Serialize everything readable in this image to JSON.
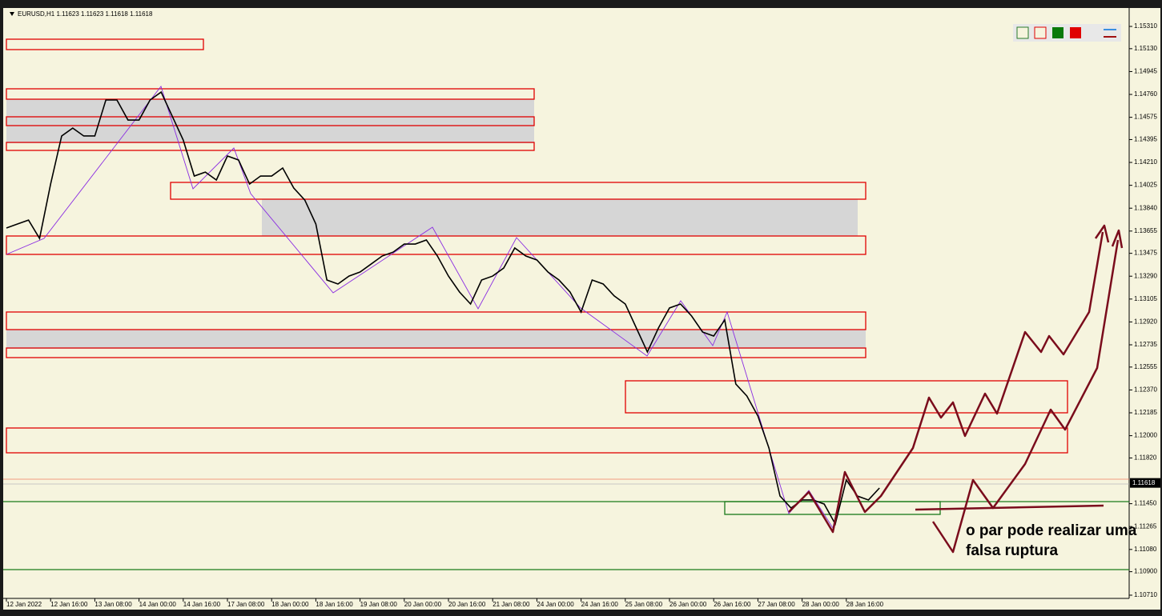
{
  "chart_data": {
    "type": "line",
    "title": "EURUSD,H1  1.11623 1.11623 1.11618 1.11618",
    "annotation": "o par pode realizar uma falsa ruptura",
    "current_price": 1.11618,
    "color": "#000000",
    "categories": [
      "12 Jan 2022",
      null,
      null,
      null,
      "12 Jan 16:00",
      null,
      null,
      null,
      "13 Jan 08:00",
      null,
      null,
      null,
      "14 Jan 00:00",
      null,
      null,
      null,
      "14 Jan 16:00",
      null,
      null,
      null,
      "17 Jan 08:00",
      null,
      null,
      null,
      "18 Jan 00:00",
      null,
      null,
      null,
      "18 Jan 16:00",
      null,
      null,
      null,
      "19 Jan 08:00",
      null,
      null,
      null,
      "20 Jan 00:00",
      null,
      null,
      null,
      "20 Jan 16:00",
      null,
      null,
      null,
      "21 Jan 08:00",
      null,
      null,
      null,
      "24 Jan 00:00",
      null,
      null,
      null,
      "24 Jan 16:00",
      null,
      null,
      null,
      "25 Jan 08:00",
      null,
      null,
      null,
      "26 Jan 00:00",
      null,
      null,
      null,
      "26 Jan 16:00",
      null,
      null,
      null,
      "27 Jan 08:00",
      null,
      null,
      null,
      "28 Jan 00:00",
      null,
      null,
      null,
      "28 Jan 16:00",
      null,
      null,
      null
    ],
    "values": [
      1.1368,
      1.13712,
      1.13744,
      1.13595,
      1.14035,
      1.14424,
      1.14488,
      1.14424,
      1.14424,
      1.14715,
      1.14715,
      1.14553,
      1.14553,
      1.14715,
      1.14779,
      1.14585,
      1.14391,
      1.141,
      1.14132,
      1.14068,
      1.14262,
      1.1423,
      1.14035,
      1.141,
      1.141,
      1.14165,
      1.14003,
      1.13906,
      1.13712,
      1.13259,
      1.13227,
      1.13291,
      1.13324,
      1.13388,
      1.13453,
      1.13485,
      1.1355,
      1.1355,
      1.13583,
      1.13453,
      1.13291,
      1.13162,
      1.13065,
      1.13259,
      1.13291,
      1.13356,
      1.13518,
      1.13453,
      1.13421,
      1.13324,
      1.13259,
      1.13162,
      1.13,
      1.13259,
      1.13227,
      1.1313,
      1.13065,
      1.12871,
      1.12677,
      1.12871,
      1.13033,
      1.13065,
      1.12968,
      1.12838,
      1.12806,
      1.12936,
      1.12418,
      1.12321,
      1.12159,
      1.119,
      1.11512,
      1.11415,
      1.1148,
      1.1148,
      1.11447,
      1.11286,
      1.11642,
      1.11512,
      1.1148,
      1.11577
    ],
    "ylim": [
      1.10684,
      1.15459
    ],
    "yticks": [
      {
        "value": 1.1531,
        "label": "1.15310"
      },
      {
        "value": 1.1513,
        "label": "1.15130"
      },
      1.14945,
      {
        "value": 1.1476,
        "label": "1.14760"
      },
      1.14575,
      1.14395,
      {
        "value": 1.1421,
        "label": "1.14210"
      },
      1.14025,
      {
        "value": 1.1384,
        "label": "1.13840"
      },
      1.13655,
      1.13475,
      {
        "value": 1.1329,
        "label": "1.13290"
      },
      1.13105,
      {
        "value": 1.1292,
        "label": "1.12920"
      },
      1.12735,
      1.12555,
      {
        "value": 1.1237,
        "label": "1.12370"
      },
      1.12185,
      {
        "value": 1.12,
        "label": "1.12000"
      },
      {
        "value": 1.1182,
        "label": "1.11820"
      },
      {
        "value": 1.1145,
        "label": "1.11450"
      },
      1.11265,
      {
        "value": 1.1108,
        "label": "1.11080"
      },
      {
        "value": 1.109,
        "label": "1.10900"
      },
      {
        "value": 1.1071,
        "label": "1.10710"
      }
    ],
    "grid": false
  }
}
